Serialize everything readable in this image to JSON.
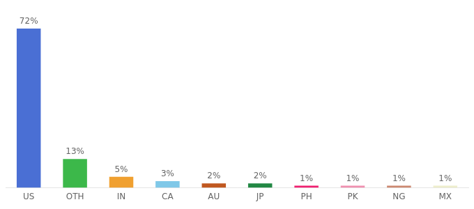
{
  "chart_data": {
    "type": "bar",
    "categories": [
      "US",
      "OTH",
      "IN",
      "CA",
      "AU",
      "JP",
      "PH",
      "PK",
      "NG",
      "MX"
    ],
    "values": [
      72,
      13,
      5,
      3,
      2,
      2,
      1,
      1,
      1,
      1
    ],
    "value_labels": [
      "72%",
      "13%",
      "5%",
      "3%",
      "2%",
      "2%",
      "1%",
      "1%",
      "1%",
      "1%"
    ],
    "colors": [
      "#4a6fd4",
      "#3cb84a",
      "#f0a030",
      "#80c8e8",
      "#c05820",
      "#228844",
      "#f02070",
      "#f090b0",
      "#cc8870",
      "#eeeecc"
    ],
    "ylim": [
      0,
      78
    ],
    "data_labels": true,
    "tick_labels": "x",
    "grid": false
  }
}
